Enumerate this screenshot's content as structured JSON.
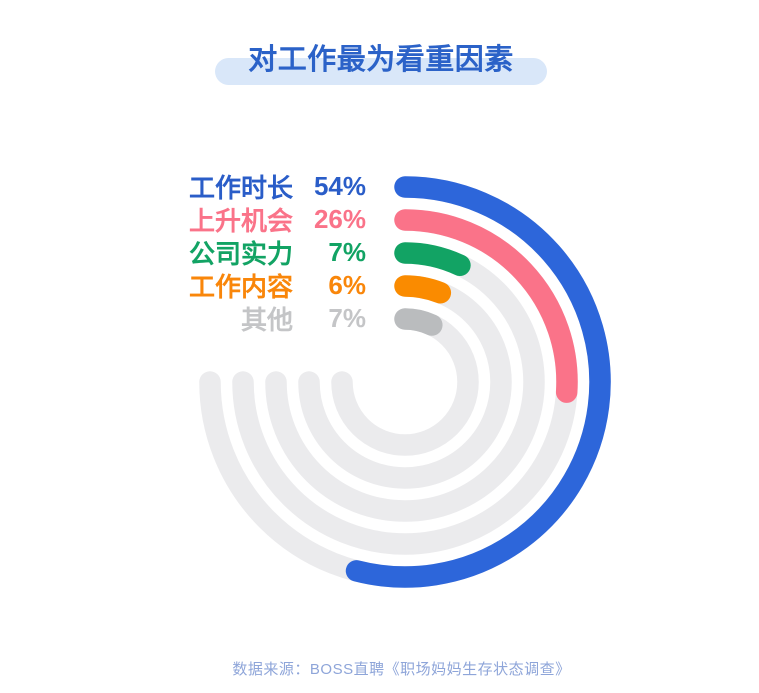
{
  "title": {
    "text": "对工作最为看重因素"
  },
  "chart_data": {
    "type": "radial_bar",
    "title": "对工作最为看重因素",
    "categories": [
      "工作时长",
      "上升机会",
      "公司实力",
      "工作内容",
      "其他"
    ],
    "values": [
      54,
      26,
      7,
      6,
      7
    ],
    "unit": "%",
    "series_colors": [
      "#2D66DA",
      "#FA7389",
      "#12A364",
      "#FA8B00",
      "#BABCBE"
    ],
    "label_colors": [
      "#2A5DC8",
      "#FA7389",
      "#12A364",
      "#F9860A",
      "#C4C5C7"
    ],
    "track_color": "#EBEBED",
    "start_angle_deg": 0,
    "direction": "clockwise",
    "scale_full_circle_pct": 100,
    "track_sweep_deg": 270,
    "rings_order": "largest-outermost",
    "legend_position": "upper-left",
    "grid": false
  },
  "footer": {
    "source_text": "数据来源：BOSS直聘《职场妈妈生存状态调查》"
  },
  "theme": {
    "background": "#FFFFFF",
    "title_color": "#2B62C8",
    "title_pill_color": "#D9E7F9",
    "source_color": "#8EA5D9"
  }
}
